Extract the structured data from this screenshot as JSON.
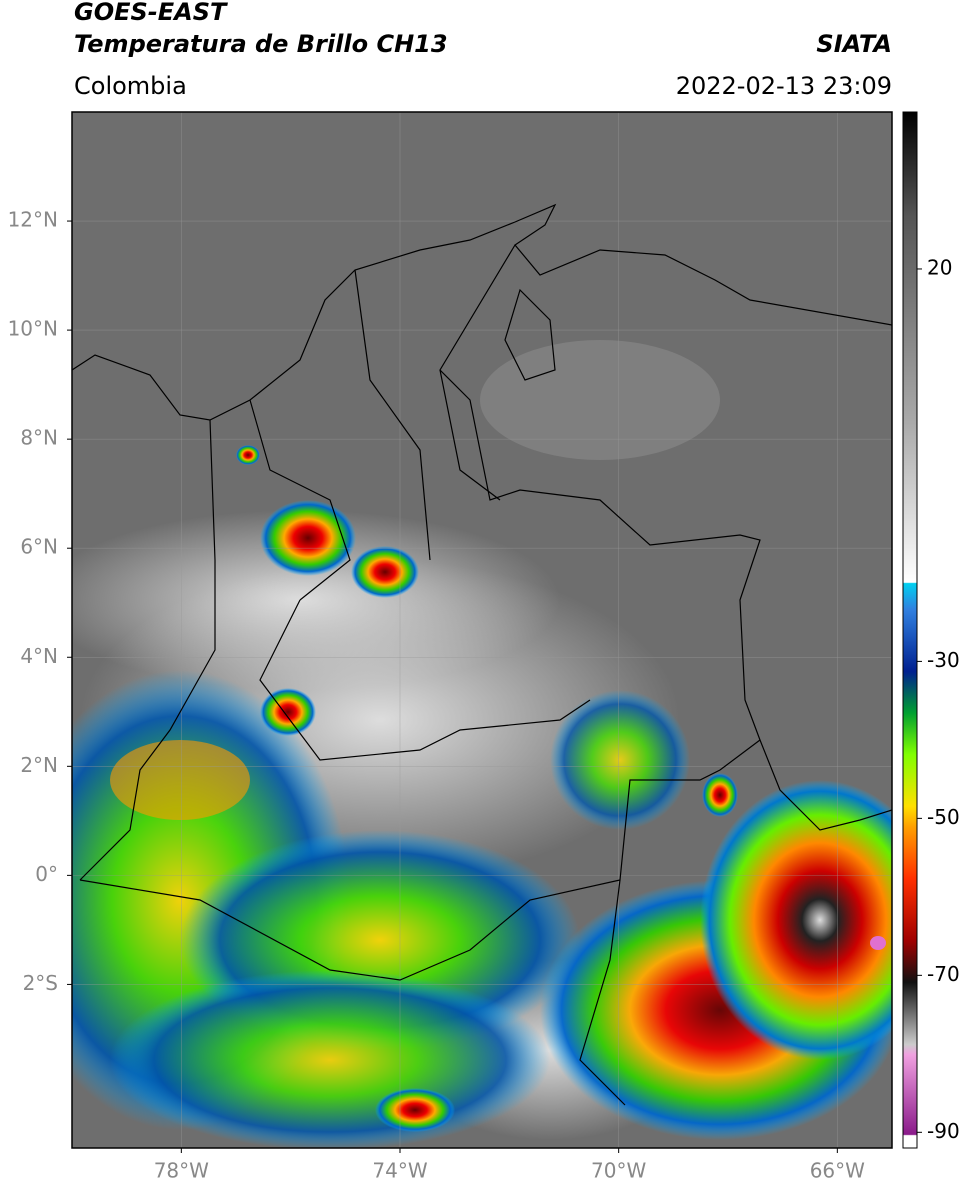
{
  "chart_data": {
    "type": "map",
    "title": "GOES-EAST",
    "subtitle": "Temperatura de Brillo CH13",
    "source": "SIATA",
    "region": "Colombia",
    "timestamp": "2022-02-13 23:09",
    "xlim": [
      -80,
      -65
    ],
    "ylim": [
      -5,
      14
    ],
    "xticks": [
      {
        "value": -78,
        "label": "78°W"
      },
      {
        "value": -74,
        "label": "74°W"
      },
      {
        "value": -70,
        "label": "70°W"
      },
      {
        "value": -66,
        "label": "66°W"
      }
    ],
    "yticks": [
      {
        "value": 12,
        "label": "12°N"
      },
      {
        "value": 10,
        "label": "10°N"
      },
      {
        "value": 8,
        "label": "8°N"
      },
      {
        "value": 6,
        "label": "6°N"
      },
      {
        "value": 4,
        "label": "4°N"
      },
      {
        "value": 2,
        "label": "2°N"
      },
      {
        "value": 0,
        "label": "0°"
      },
      {
        "value": -2,
        "label": "2°S"
      }
    ],
    "clim": [
      -92,
      40
    ],
    "cticks": [
      20,
      -30,
      -50,
      -70,
      -90
    ],
    "grid": true
  }
}
